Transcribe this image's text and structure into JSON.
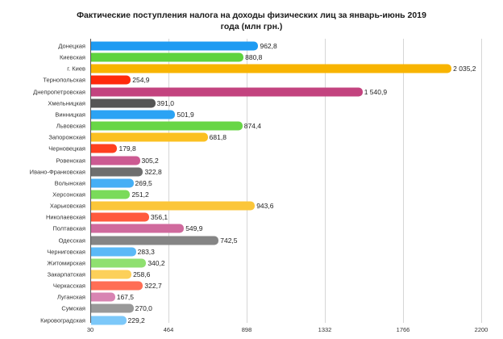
{
  "chart_data": {
    "type": "bar",
    "orientation": "horizontal",
    "title": "Фактические поступления налога на доходы физических лиц за январь-июнь 2019 года (млн грн.)",
    "title_lines": [
      "Фактические поступления налога на доходы физических лиц за январь-июнь 2019",
      "года (млн грн.)"
    ],
    "xlabel": "",
    "ylabel": "",
    "xlim": [
      30,
      2200
    ],
    "xticks": [
      "30",
      "464",
      "898",
      "1332",
      "1766",
      "2200"
    ],
    "grid": true,
    "legend": null,
    "categories": [
      "Донецкая",
      "Киевская",
      "г. Киев",
      "Тернопольская",
      "Днепропетровская",
      "Хмельницкая",
      "Винницкая",
      "Львовская",
      "Запорожская",
      "Черновецкая",
      "Ровенская",
      "Ивано-Франковская",
      "Волынская",
      "Херсонская",
      "Харьковская",
      "Николаевская",
      "Полтавская",
      "Одесская",
      "Черниговская",
      "Житомирская",
      "Закарпатская",
      "Черкасская",
      "Луганская",
      "Сумская",
      "Кировоградская"
    ],
    "values": [
      962.8,
      880.8,
      2035.2,
      254.9,
      1540.9,
      391.0,
      501.9,
      874.4,
      681.8,
      179.8,
      305.2,
      322.8,
      269.5,
      251.2,
      943.6,
      356.1,
      549.9,
      742.5,
      283.3,
      340.2,
      258.6,
      322.7,
      167.5,
      270.0,
      229.2
    ],
    "value_labels": [
      "962,8",
      "880,8",
      "2 035,2",
      "254,9",
      "1 540,9",
      "391,0",
      "501,9",
      "874,4",
      "681,8",
      "179,8",
      "305,2",
      "322,8",
      "269,5",
      "251,2",
      "943,6",
      "356,1",
      "549,9",
      "742,5",
      "283,3",
      "340,2",
      "258,6",
      "322,7",
      "167,5",
      "270,0",
      "229,2"
    ],
    "colors": [
      "#1E9BF2",
      "#5ED33E",
      "#F8B400",
      "#FF2A0C",
      "#C3437F",
      "#555555",
      "#2BA3F4",
      "#68D646",
      "#FBC022",
      "#FF3F1F",
      "#CC5A92",
      "#6E6E6E",
      "#45AFF5",
      "#7ADB5A",
      "#FBC63A",
      "#FF5A3C",
      "#D06A9D",
      "#858585",
      "#5BB9F7",
      "#8FE070",
      "#FCD05A",
      "#FF6E55",
      "#D884B2",
      "#999999",
      "#7CC8F9"
    ]
  }
}
